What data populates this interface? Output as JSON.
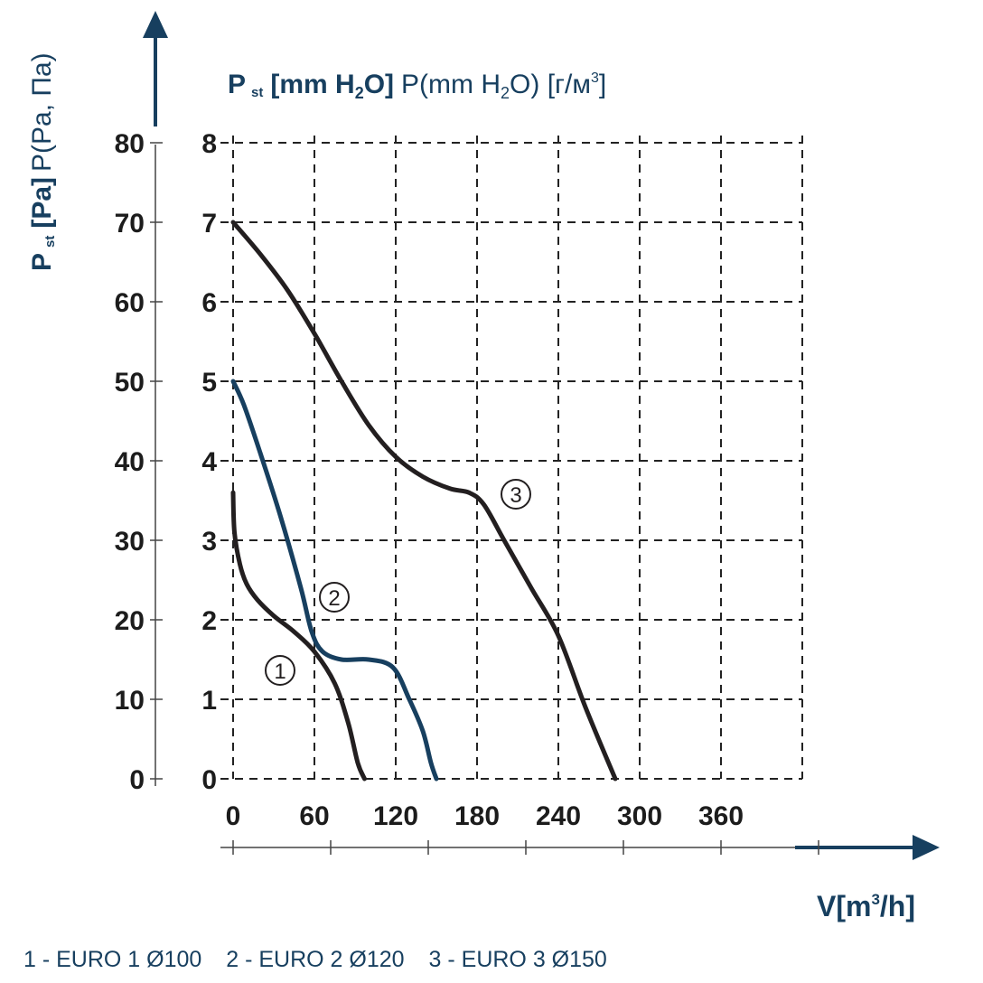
{
  "chart_data": {
    "type": "line",
    "title": {
      "secondary_axis_bold_prefix": "P",
      "secondary_axis_bold_sub": "st",
      "secondary_axis_bold_unit": "[mm H",
      "secondary_axis_bold_sub2": "2",
      "secondary_axis_bold_unit_end": "O]",
      "secondary_axis_regular": "P(mm H",
      "secondary_axis_regular_sub": "2",
      "secondary_axis_regular_end": "O) [г/м",
      "secondary_axis_regular_sup": "3",
      "secondary_axis_regular_close": "]"
    },
    "ylabel": {
      "bold_prefix": "P",
      "bold_sub": "st",
      "bold_unit": "[Pa]",
      "regular": "P(Pa, Па)"
    },
    "xlabel": {
      "main": "V[m",
      "sup": "3",
      "end": "/h]"
    },
    "xlim": [
      0,
      420
    ],
    "ylim": [
      0,
      80
    ],
    "y2lim": [
      0,
      8
    ],
    "x_ticks": [
      "0",
      "60",
      "120",
      "180",
      "240",
      "300",
      "360"
    ],
    "y_ticks": [
      "0",
      "10",
      "20",
      "30",
      "40",
      "50",
      "60",
      "70",
      "80"
    ],
    "y2_ticks": [
      "0",
      "1",
      "2",
      "3",
      "4",
      "5",
      "6",
      "7",
      "8"
    ],
    "grid": true,
    "series": [
      {
        "name": "1",
        "color": "#231f20",
        "points": [
          [
            0,
            36
          ],
          [
            1,
            31
          ],
          [
            5,
            27
          ],
          [
            10,
            24.5
          ],
          [
            18,
            22.5
          ],
          [
            30,
            20.5
          ],
          [
            45,
            18.5
          ],
          [
            60,
            16
          ],
          [
            75,
            12
          ],
          [
            85,
            7
          ],
          [
            92,
            2
          ],
          [
            97,
            0
          ]
        ]
      },
      {
        "name": "2",
        "color": "#173f5f",
        "points": [
          [
            0,
            50
          ],
          [
            8,
            47
          ],
          [
            20,
            41
          ],
          [
            35,
            33
          ],
          [
            50,
            24
          ],
          [
            58,
            18.5
          ],
          [
            66,
            16
          ],
          [
            80,
            15
          ],
          [
            100,
            15
          ],
          [
            118,
            14
          ],
          [
            130,
            10
          ],
          [
            140,
            6
          ],
          [
            146,
            2
          ],
          [
            150,
            0
          ]
        ]
      },
      {
        "name": "3",
        "color": "#231f20",
        "points": [
          [
            0,
            70
          ],
          [
            20,
            66
          ],
          [
            40,
            61.5
          ],
          [
            60,
            56
          ],
          [
            80,
            50
          ],
          [
            100,
            44.5
          ],
          [
            120,
            40.5
          ],
          [
            140,
            38
          ],
          [
            160,
            36.5
          ],
          [
            174,
            36
          ],
          [
            185,
            34.5
          ],
          [
            200,
            30
          ],
          [
            220,
            24
          ],
          [
            240,
            18
          ],
          [
            260,
            9
          ],
          [
            282,
            0
          ]
        ]
      }
    ],
    "curve_labels": [
      "1",
      "2",
      "3"
    ]
  },
  "legend": {
    "items": [
      "1 - EURO 1 Ø100",
      "2 - EURO 2 Ø120",
      "3 - EURO 3 Ø150"
    ]
  }
}
